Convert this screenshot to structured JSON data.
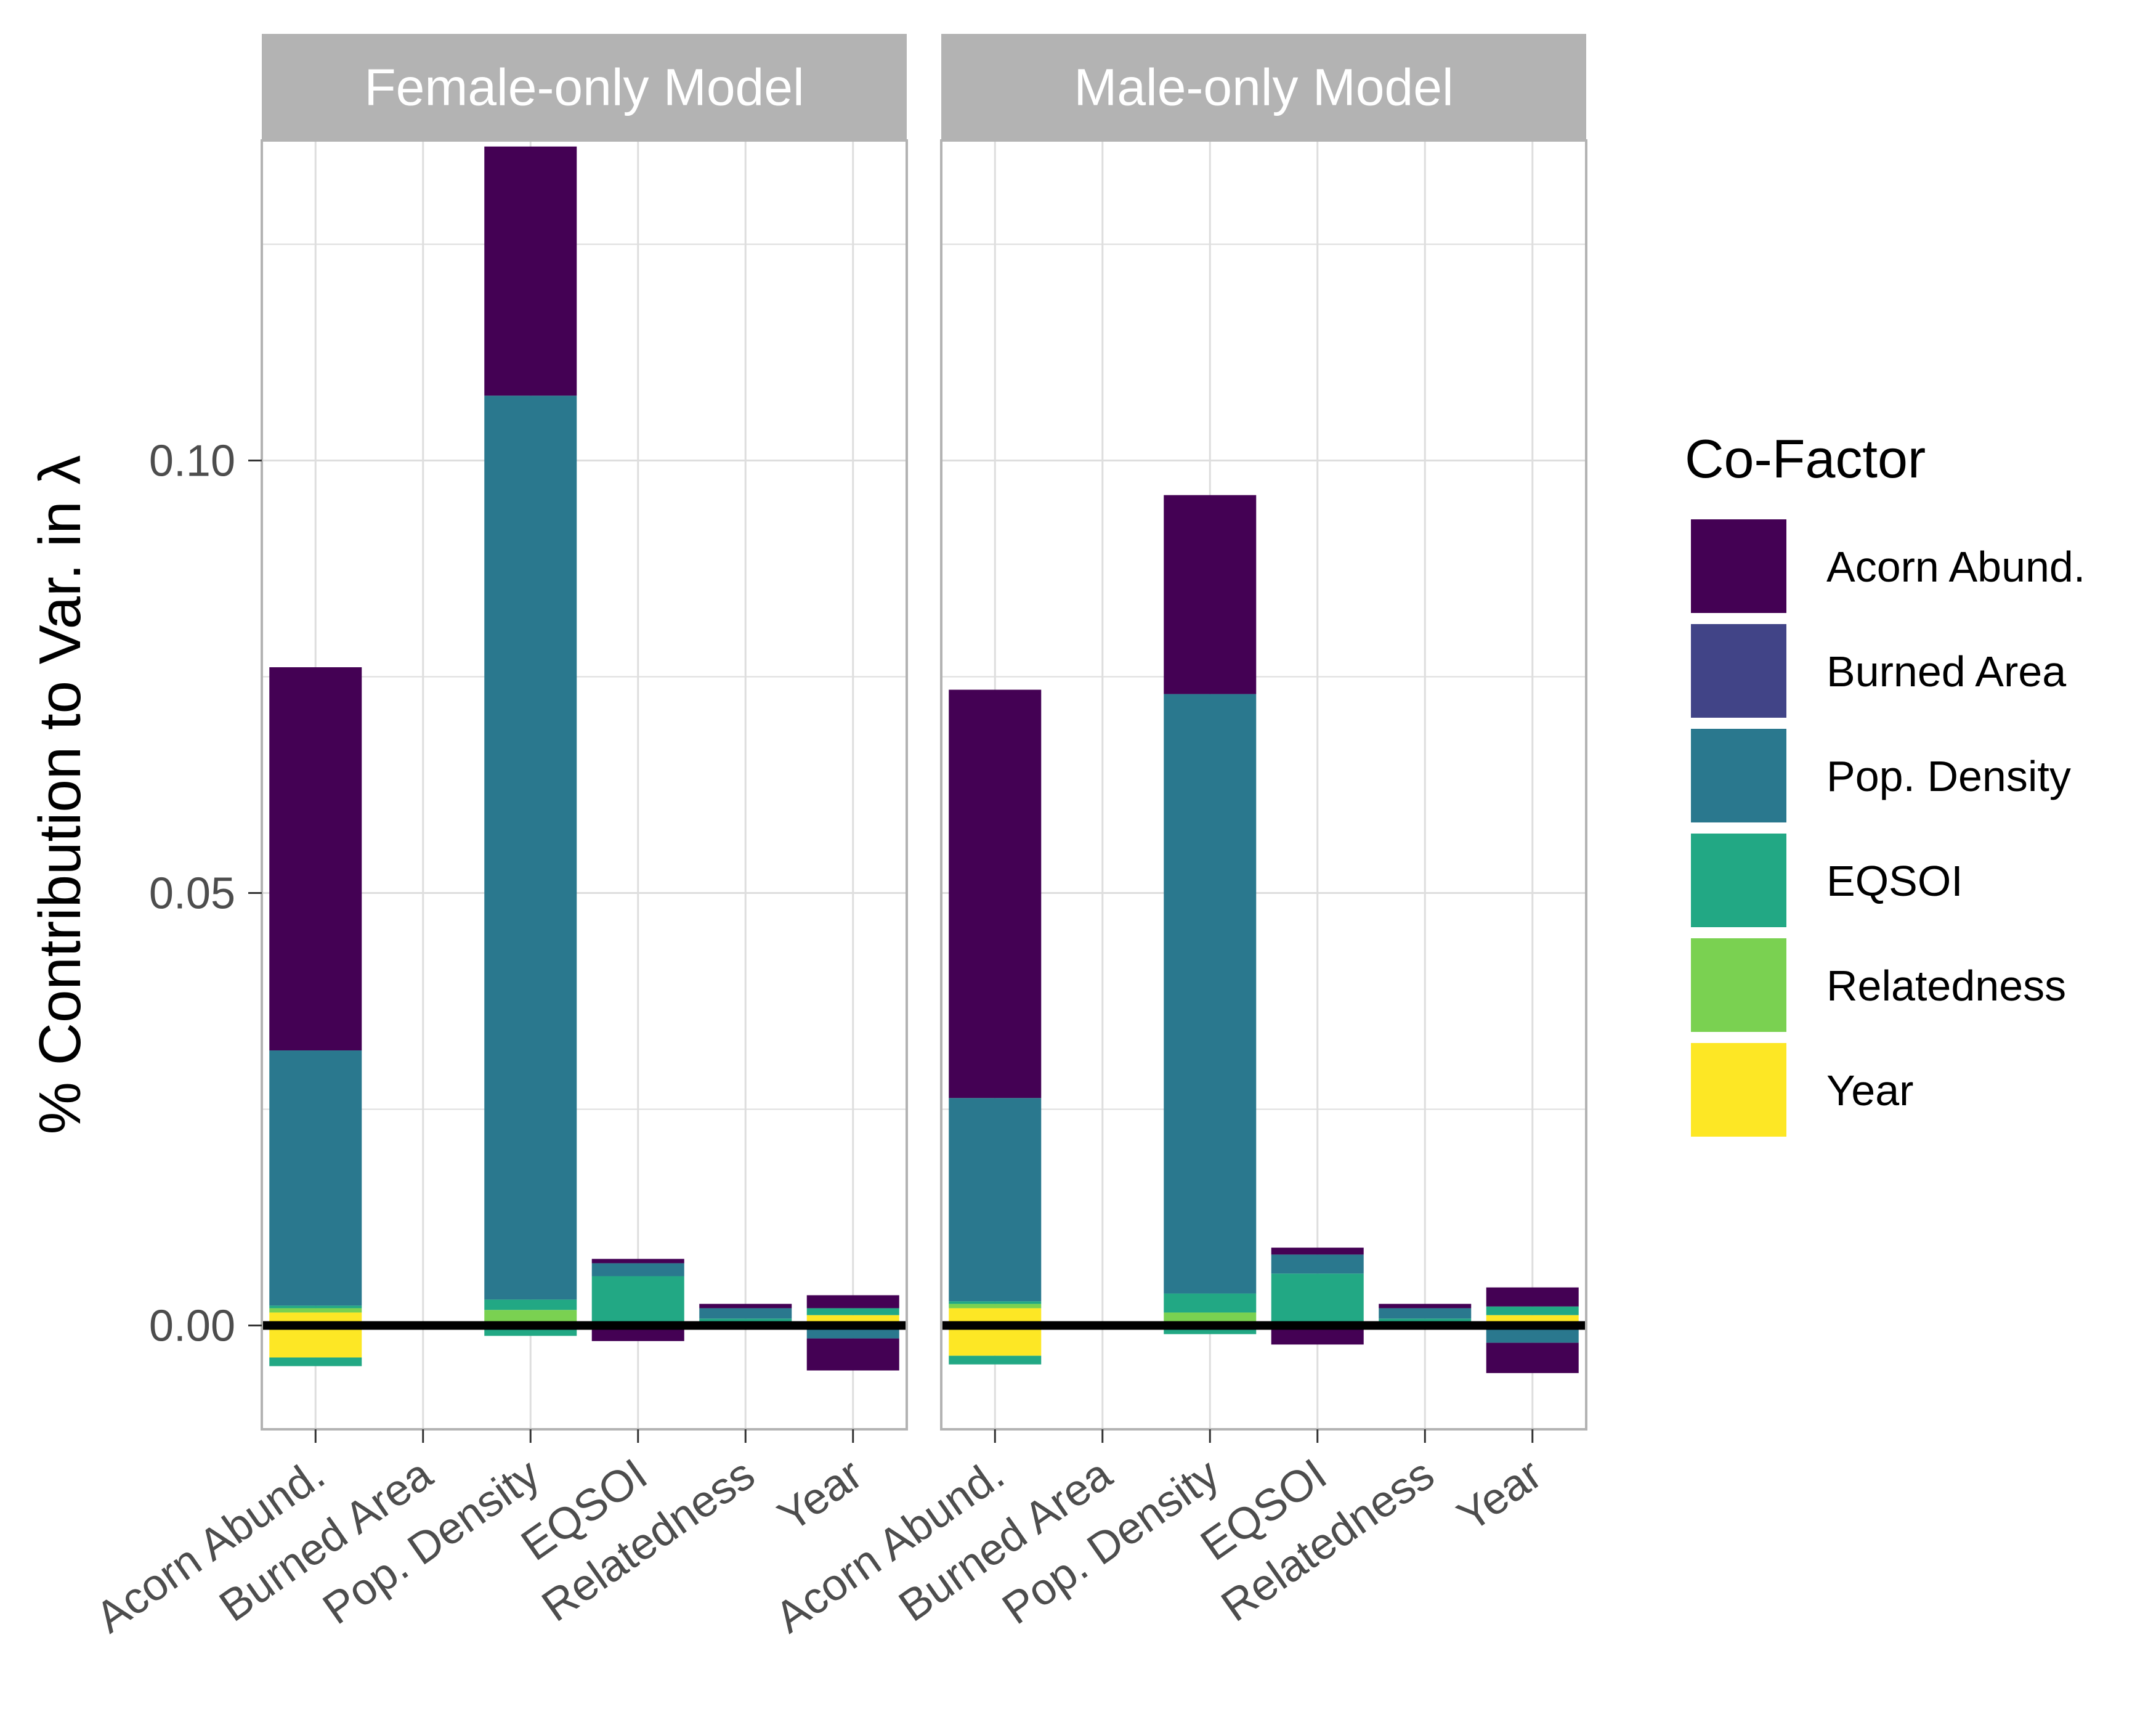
{
  "colors": {
    "Acorn Abund.": "#440154",
    "Burned Area": "#414487",
    "Pop. Density": "#2A788E",
    "EQSOI": "#22A884",
    "Relatedness": "#7AD151",
    "Year": "#FDE725",
    "strip_bg": "#B3B3B3",
    "panel_border": "#B3B3B3",
    "grid": "#DEDEDE",
    "zero_line": "#000000"
  },
  "chart_data": {
    "type": "bar",
    "stacked": true,
    "ylabel": "% Contribution to Var. in λ",
    "xlabel": "",
    "ylim": [
      -0.012,
      0.137
    ],
    "y_ticks": [
      "0.00",
      "0.05",
      "0.10"
    ],
    "y_tick_values": [
      0.0,
      0.05,
      0.1
    ],
    "categories": [
      "Acorn Abund.",
      "Burned Area",
      "Pop. Density",
      "EQSOI",
      "Relatedness",
      "Year"
    ],
    "grid": true,
    "zero_line": true,
    "legend": {
      "title": "Co-Factor",
      "position": "right",
      "entries": [
        "Acorn Abund.",
        "Burned Area",
        "Pop. Density",
        "EQSOI",
        "Relatedness",
        "Year"
      ]
    },
    "panels": [
      {
        "title": "Female-only Model",
        "bars": [
          {
            "category": "Acorn Abund.",
            "segments": [
              {
                "factor": "Year",
                "value": -0.0037
              },
              {
                "factor": "EQSOI",
                "value": -0.001
              },
              {
                "factor": "Year",
                "value": 0.0015
              },
              {
                "factor": "Relatedness",
                "value": 0.0005
              },
              {
                "factor": "EQSOI",
                "value": 0.0003
              },
              {
                "factor": "Pop. Density",
                "value": 0.0295
              },
              {
                "factor": "Acorn Abund.",
                "value": 0.0443
              }
            ]
          },
          {
            "category": "Burned Area",
            "segments": []
          },
          {
            "category": "Pop. Density",
            "segments": [
              {
                "factor": "EQSOI",
                "value": -0.0012
              },
              {
                "factor": "Relatedness",
                "value": 0.0018
              },
              {
                "factor": "EQSOI",
                "value": 0.0012
              },
              {
                "factor": "Pop. Density",
                "value": 0.1045
              },
              {
                "factor": "Acorn Abund.",
                "value": 0.0288
              }
            ]
          },
          {
            "category": "EQSOI",
            "segments": [
              {
                "factor": "Acorn Abund.",
                "value": -0.0018
              },
              {
                "factor": "EQSOI",
                "value": 0.0057
              },
              {
                "factor": "Pop. Density",
                "value": 0.0015
              },
              {
                "factor": "Acorn Abund.",
                "value": 0.0005
              }
            ]
          },
          {
            "category": "Relatedness",
            "segments": [
              {
                "factor": "Acorn Abund.",
                "value": -0.0003
              },
              {
                "factor": "EQSOI",
                "value": 0.0008
              },
              {
                "factor": "Pop. Density",
                "value": 0.0012
              },
              {
                "factor": "Acorn Abund.",
                "value": 0.0005
              }
            ]
          },
          {
            "category": "Year",
            "segments": [
              {
                "factor": "Pop. Density",
                "value": -0.0015
              },
              {
                "factor": "Acorn Abund.",
                "value": -0.0037
              },
              {
                "factor": "Year",
                "value": 0.0012
              },
              {
                "factor": "EQSOI",
                "value": 0.0008
              },
              {
                "factor": "Acorn Abund.",
                "value": 0.0015
              }
            ]
          }
        ]
      },
      {
        "title": "Male-only Model",
        "bars": [
          {
            "category": "Acorn Abund.",
            "segments": [
              {
                "factor": "Year",
                "value": -0.0035
              },
              {
                "factor": "EQSOI",
                "value": -0.001
              },
              {
                "factor": "Year",
                "value": 0.002
              },
              {
                "factor": "Relatedness",
                "value": 0.0005
              },
              {
                "factor": "EQSOI",
                "value": 0.0003
              },
              {
                "factor": "Pop. Density",
                "value": 0.0235
              },
              {
                "factor": "Acorn Abund.",
                "value": 0.0472
              }
            ]
          },
          {
            "category": "Burned Area",
            "segments": []
          },
          {
            "category": "Pop. Density",
            "segments": [
              {
                "factor": "EQSOI",
                "value": -0.001
              },
              {
                "factor": "Relatedness",
                "value": 0.0015
              },
              {
                "factor": "EQSOI",
                "value": 0.0022
              },
              {
                "factor": "Pop. Density",
                "value": 0.0693
              },
              {
                "factor": "Acorn Abund.",
                "value": 0.023
              }
            ]
          },
          {
            "category": "EQSOI",
            "segments": [
              {
                "factor": "Acorn Abund.",
                "value": -0.0022
              },
              {
                "factor": "EQSOI",
                "value": 0.006
              },
              {
                "factor": "Pop. Density",
                "value": 0.0022
              },
              {
                "factor": "Acorn Abund.",
                "value": 0.0008
              }
            ]
          },
          {
            "category": "Relatedness",
            "segments": [
              {
                "factor": "Acorn Abund.",
                "value": -0.0003
              },
              {
                "factor": "EQSOI",
                "value": 0.0008
              },
              {
                "factor": "Pop. Density",
                "value": 0.0012
              },
              {
                "factor": "Acorn Abund.",
                "value": 0.0005
              }
            ]
          },
          {
            "category": "Year",
            "segments": [
              {
                "factor": "Pop. Density",
                "value": -0.002
              },
              {
                "factor": "Acorn Abund.",
                "value": -0.0035
              },
              {
                "factor": "Year",
                "value": 0.0012
              },
              {
                "factor": "EQSOI",
                "value": 0.001
              },
              {
                "factor": "Acorn Abund.",
                "value": 0.0022
              }
            ]
          }
        ]
      }
    ]
  }
}
